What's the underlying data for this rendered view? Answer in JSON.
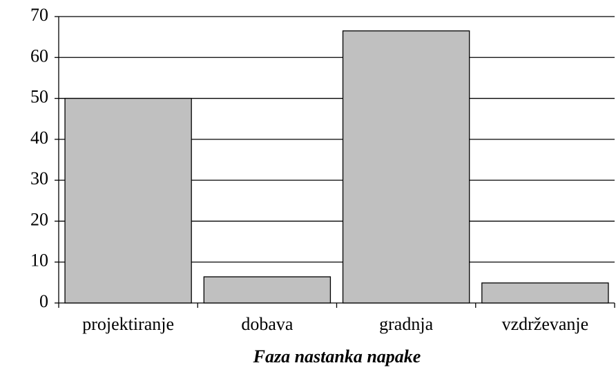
{
  "chart_data": {
    "type": "bar",
    "x_label": "Faza nastanka napake",
    "categories": [
      "projektiranje",
      "dobava",
      "gradnja",
      "vzdrževanje"
    ],
    "values": [
      50,
      6.4,
      66.5,
      4.9
    ],
    "color": "#c0c0c0",
    "ylim": [
      0,
      70
    ],
    "yticks": [
      0,
      10,
      20,
      30,
      40,
      50,
      60,
      70
    ],
    "grid": true
  }
}
